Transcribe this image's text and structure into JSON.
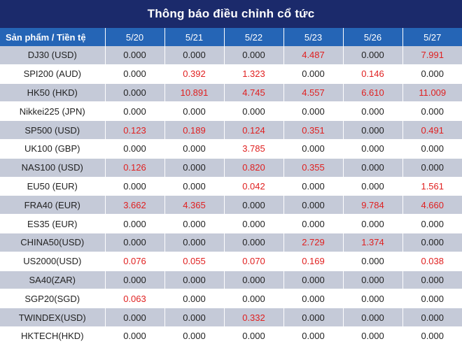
{
  "title": "Thông báo điều chỉnh cổ tức",
  "header": {
    "product_label": "Sản phẩm / Tiền tệ",
    "dates": [
      "5/20",
      "5/21",
      "5/22",
      "5/23",
      "5/26",
      "5/27"
    ]
  },
  "rows": [
    {
      "product": "DJ30 (USD)",
      "values": [
        "0.000",
        "0.000",
        "0.000",
        "4.487",
        "0.000",
        "7.991"
      ]
    },
    {
      "product": "SPI200 (AUD)",
      "values": [
        "0.000",
        "0.392",
        "1.323",
        "0.000",
        "0.146",
        "0.000"
      ]
    },
    {
      "product": "HK50 (HKD)",
      "values": [
        "0.000",
        "10.891",
        "4.745",
        "4.557",
        "6.610",
        "11.009"
      ]
    },
    {
      "product": "Nikkei225 (JPN)",
      "values": [
        "0.000",
        "0.000",
        "0.000",
        "0.000",
        "0.000",
        "0.000"
      ]
    },
    {
      "product": "SP500 (USD)",
      "values": [
        "0.123",
        "0.189",
        "0.124",
        "0.351",
        "0.000",
        "0.491"
      ]
    },
    {
      "product": "UK100 (GBP)",
      "values": [
        "0.000",
        "0.000",
        "3.785",
        "0.000",
        "0.000",
        "0.000"
      ]
    },
    {
      "product": "NAS100 (USD)",
      "values": [
        "0.126",
        "0.000",
        "0.820",
        "0.355",
        "0.000",
        "0.000"
      ]
    },
    {
      "product": "EU50 (EUR)",
      "values": [
        "0.000",
        "0.000",
        "0.042",
        "0.000",
        "0.000",
        "1.561"
      ]
    },
    {
      "product": "FRA40 (EUR)",
      "values": [
        "3.662",
        "4.365",
        "0.000",
        "0.000",
        "9.784",
        "4.660"
      ]
    },
    {
      "product": "ES35 (EUR)",
      "values": [
        "0.000",
        "0.000",
        "0.000",
        "0.000",
        "0.000",
        "0.000"
      ]
    },
    {
      "product": "CHINA50(USD)",
      "values": [
        "0.000",
        "0.000",
        "0.000",
        "2.729",
        "1.374",
        "0.000"
      ]
    },
    {
      "product": "US2000(USD)",
      "values": [
        "0.076",
        "0.055",
        "0.070",
        "0.169",
        "0.000",
        "0.038"
      ]
    },
    {
      "product": "SA40(ZAR)",
      "values": [
        "0.000",
        "0.000",
        "0.000",
        "0.000",
        "0.000",
        "0.000"
      ]
    },
    {
      "product": "SGP20(SGD)",
      "values": [
        "0.063",
        "0.000",
        "0.000",
        "0.000",
        "0.000",
        "0.000"
      ]
    },
    {
      "product": "TWINDEX(USD)",
      "values": [
        "0.000",
        "0.000",
        "0.332",
        "0.000",
        "0.000",
        "0.000"
      ]
    },
    {
      "product": "HKTECH(HKD)",
      "values": [
        "0.000",
        "0.000",
        "0.000",
        "0.000",
        "0.000",
        "0.000"
      ]
    }
  ],
  "colors": {
    "title_bg": "#1b2a6b",
    "header_bg": "#2565b6",
    "row_shade": "#c5cad8",
    "positive_value": "#e02020",
    "zero_value": "#222222"
  }
}
